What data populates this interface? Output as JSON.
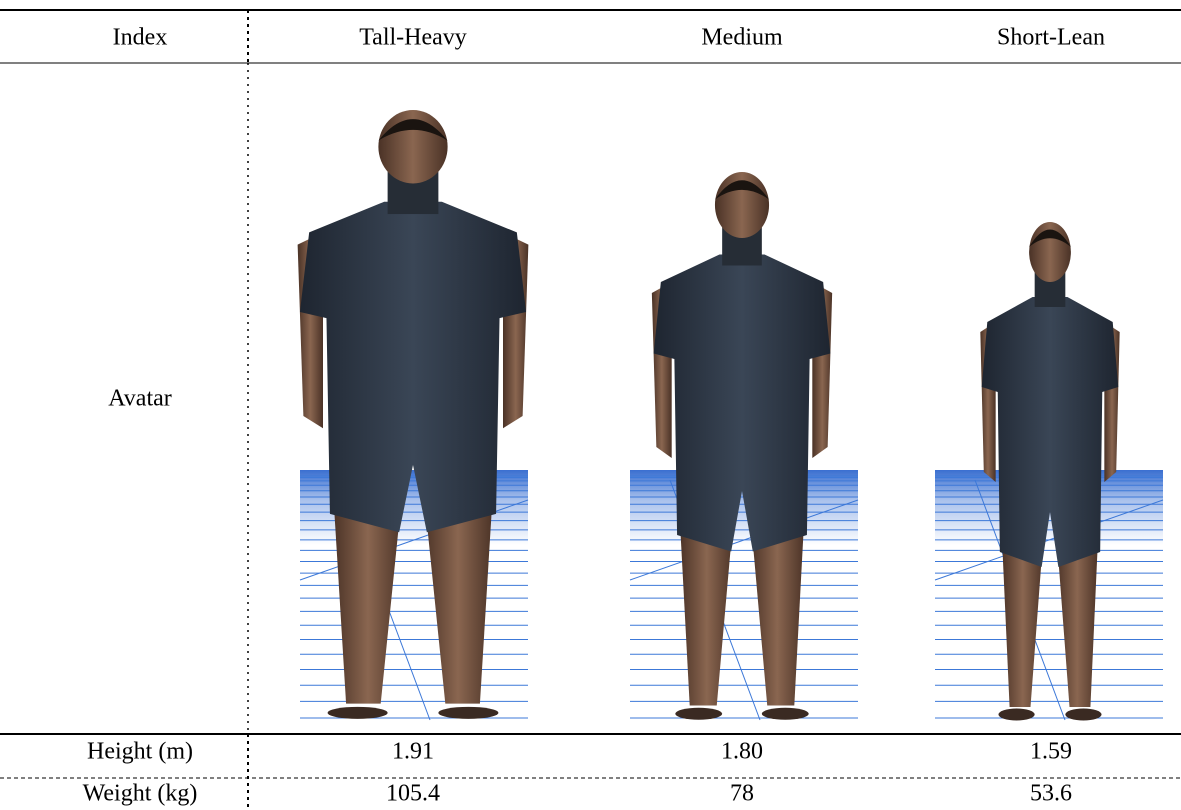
{
  "table": {
    "header": [
      "Index",
      "Tall-Heavy",
      "Medium",
      "Short-Lean"
    ],
    "rows": [
      [
        "Avatar"
      ],
      [
        "Height (m)",
        "1.91",
        "1.80",
        "1.59"
      ],
      [
        "Weight (kg)",
        "105.4",
        "78",
        "53.6"
      ]
    ]
  }
}
